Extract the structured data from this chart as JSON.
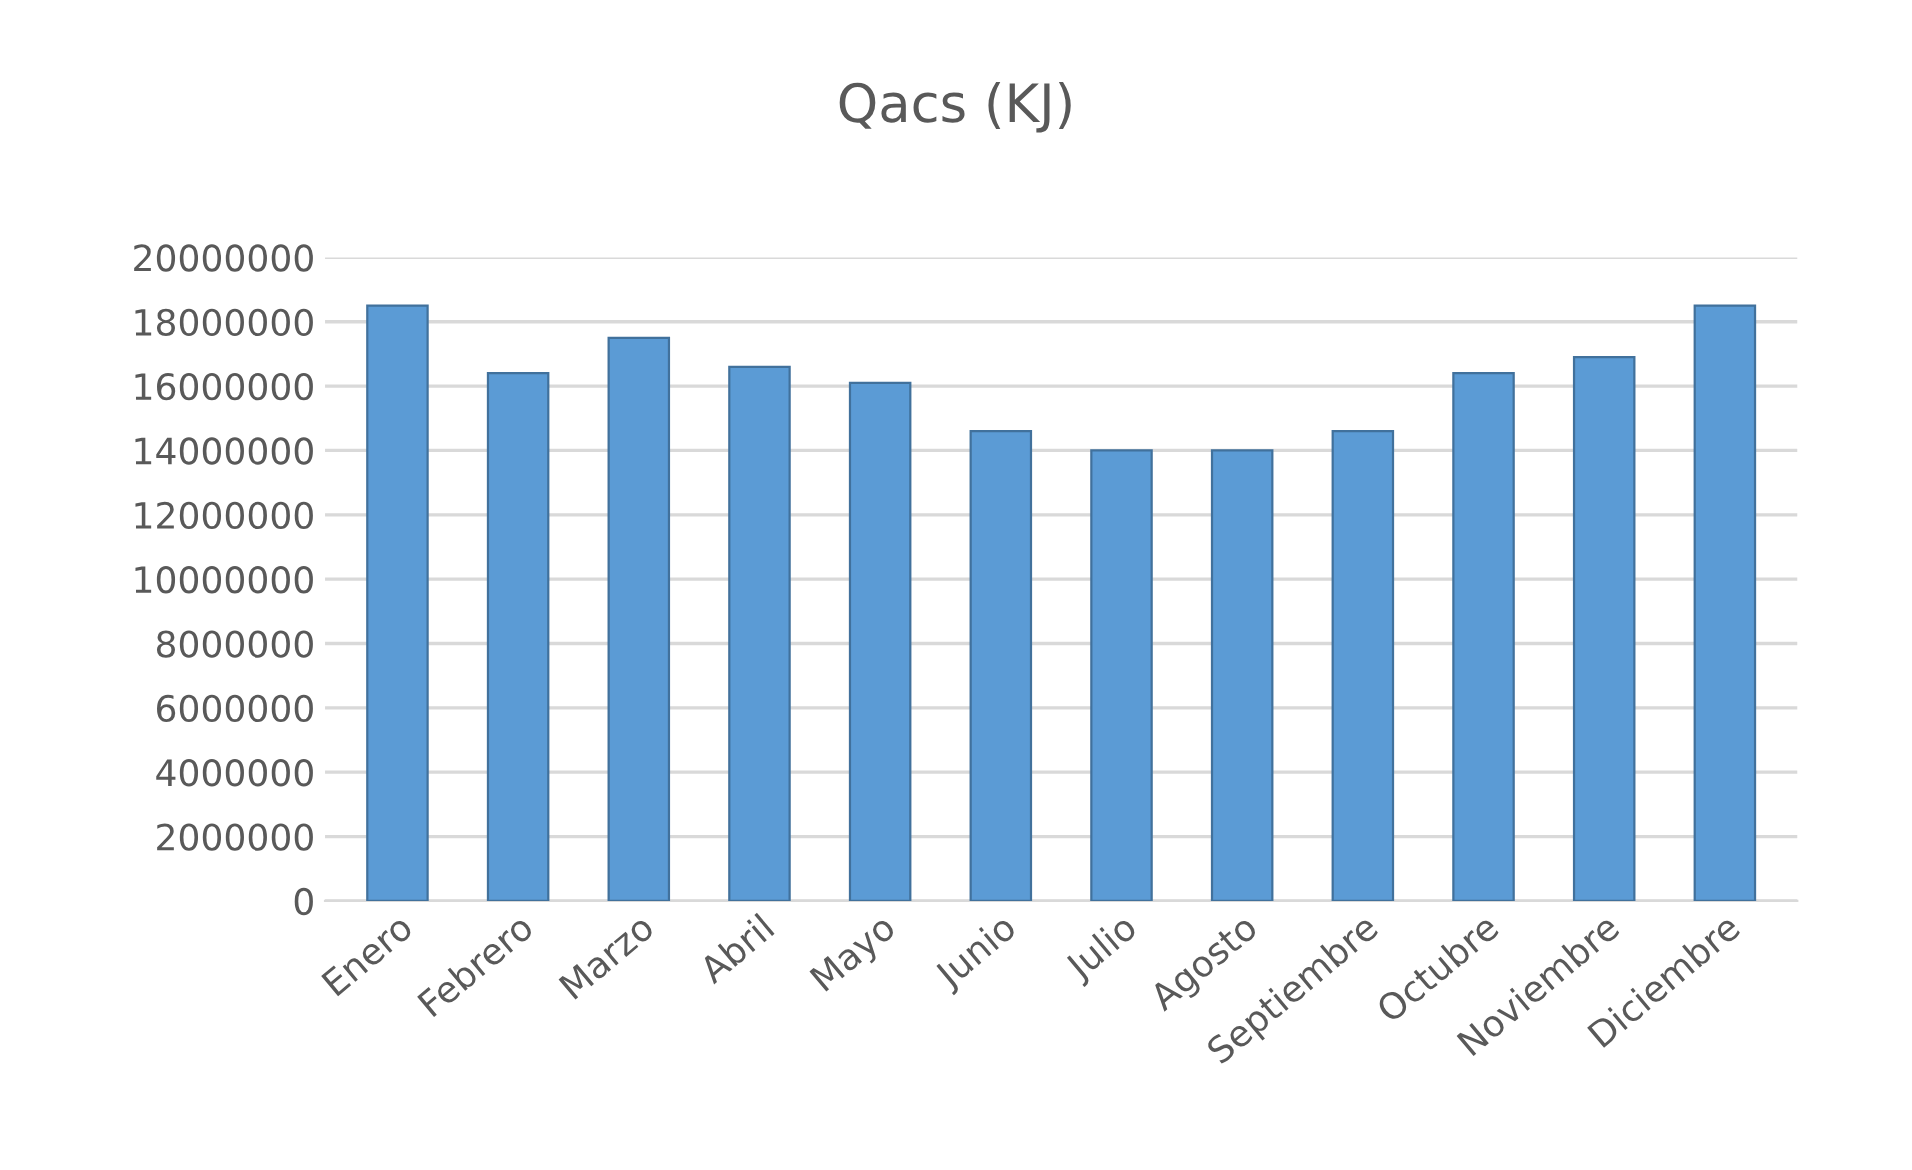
{
  "chart_data": {
    "type": "bar",
    "title": "Qacs (KJ)",
    "categories": [
      "Enero",
      "Febrero",
      "Marzo",
      "Abril",
      "Mayo",
      "Junio",
      "Julio",
      "Agosto",
      "Septiembre",
      "Octubre",
      "Noviembre",
      "Diciembre"
    ],
    "values": [
      18500000,
      16400000,
      17500000,
      16600000,
      16100000,
      14600000,
      14000000,
      14000000,
      14600000,
      16400000,
      16900000,
      18500000
    ],
    "color": "#5b9bd5",
    "ylim": [
      0,
      20000000
    ],
    "yticks": [
      0,
      2000000,
      4000000,
      6000000,
      8000000,
      10000000,
      12000000,
      14000000,
      16000000,
      18000000,
      20000000
    ],
    "grid": "y"
  }
}
